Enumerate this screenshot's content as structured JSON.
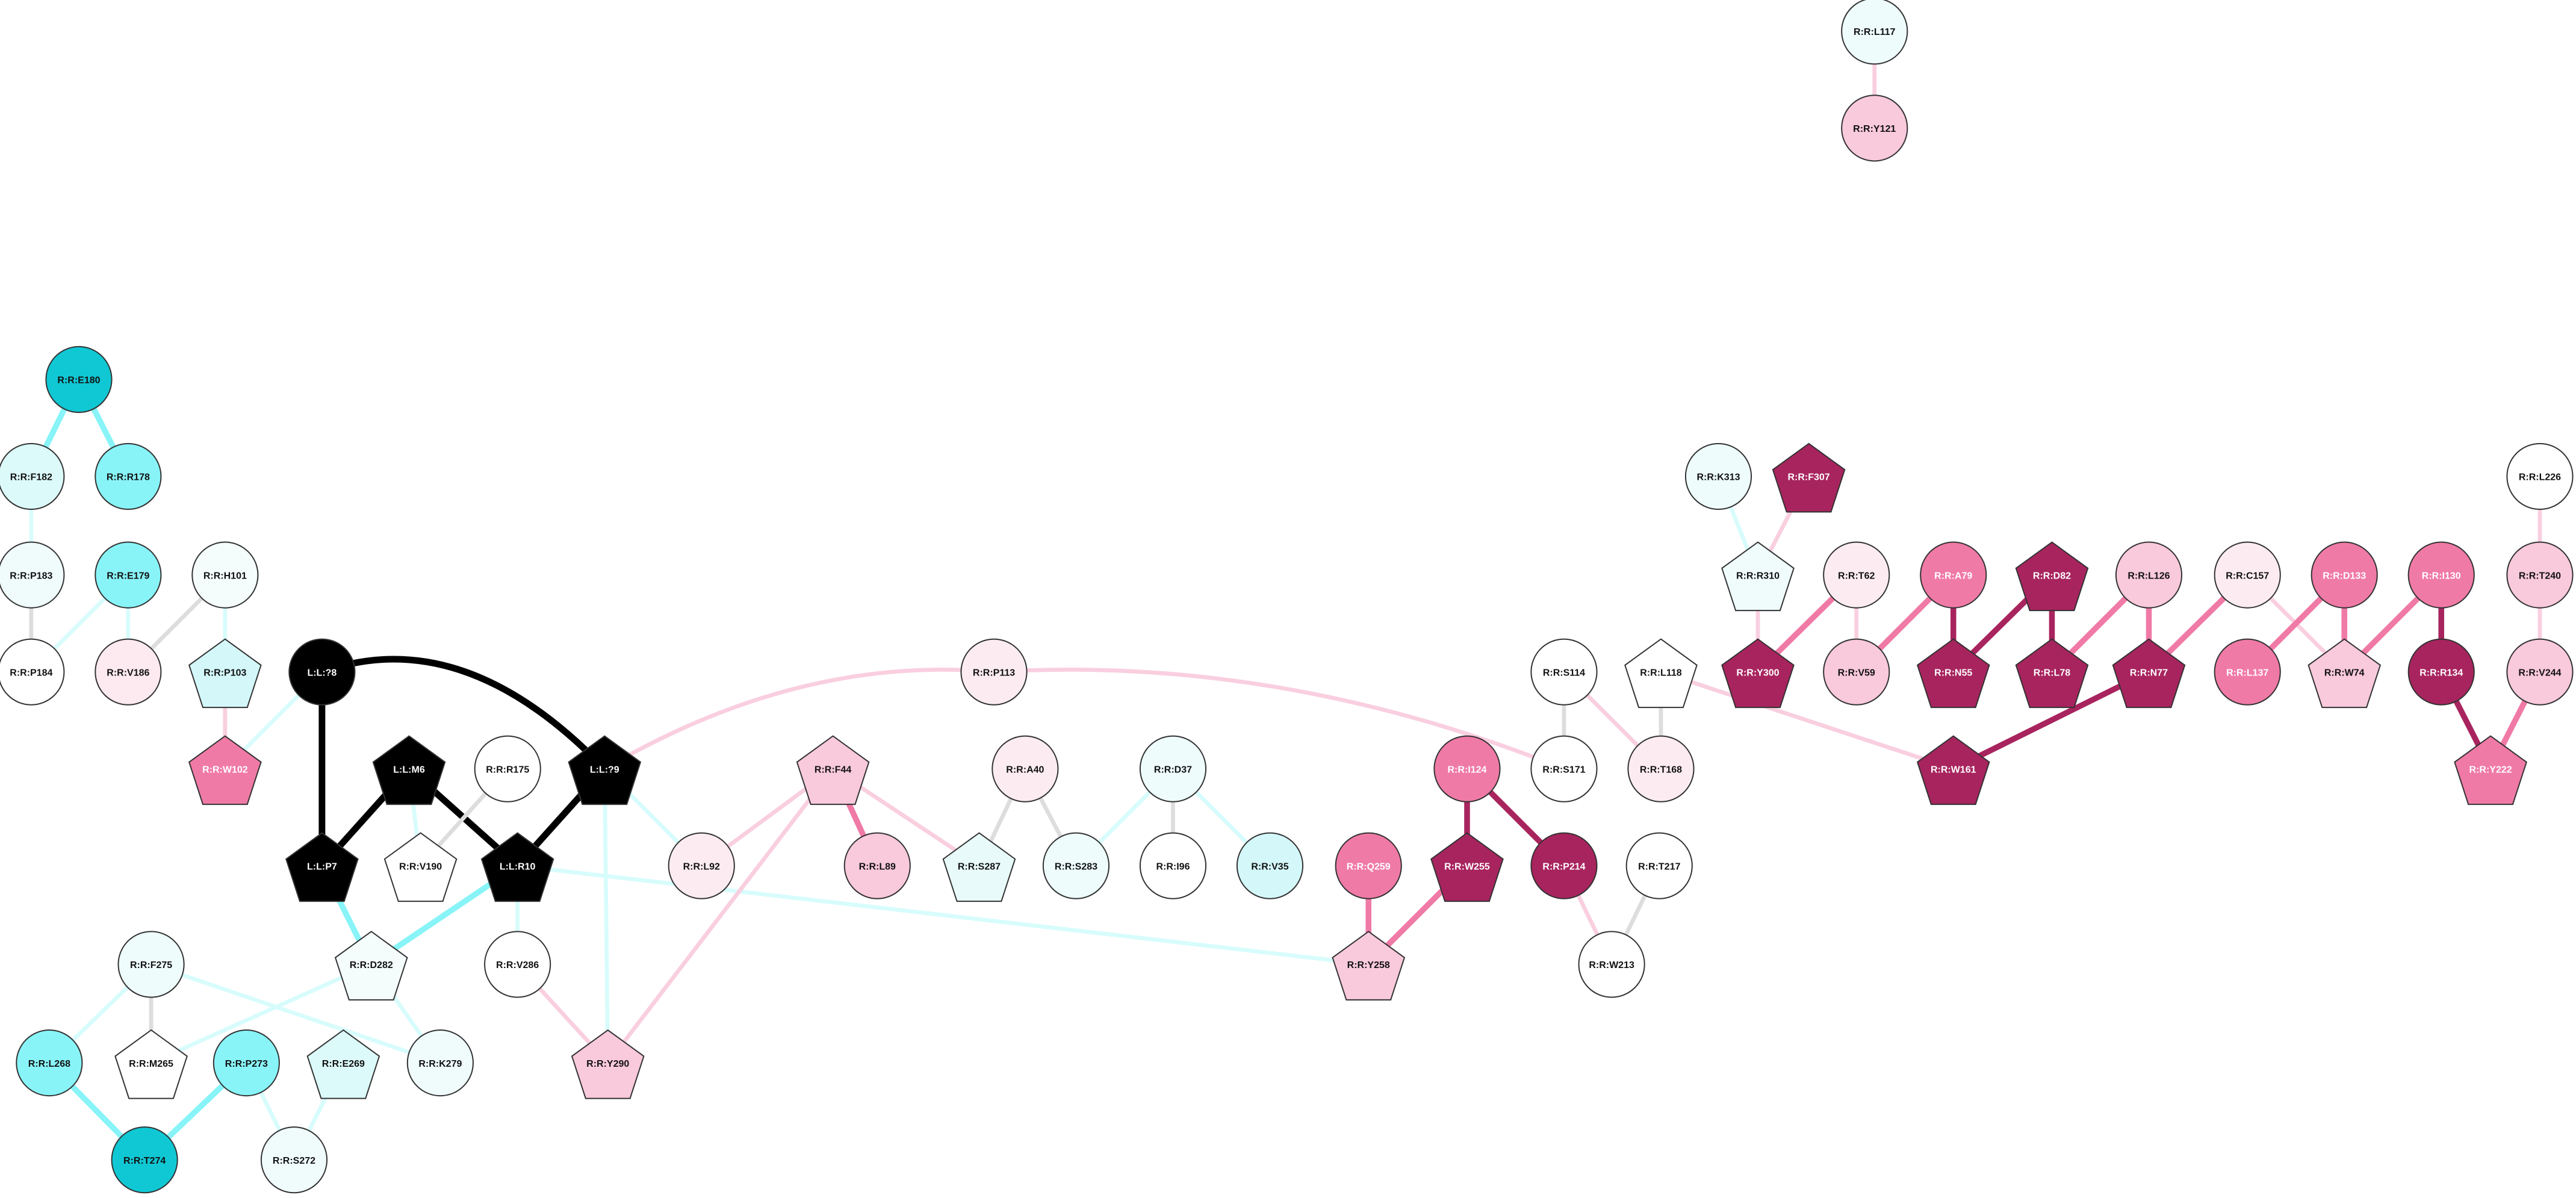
{
  "nodes": [
    {
      "label": "R:R:L117",
      "shape": "circle",
      "color": "#eefcfc"
    },
    {
      "label": "R:R:Y121",
      "shape": "circle",
      "color": "#f9c9dc"
    },
    {
      "label": "R:R:E180",
      "shape": "circle",
      "color": "#10c8d4"
    },
    {
      "label": "R:R:F182",
      "shape": "circle",
      "color": "#dcfafa"
    },
    {
      "label": "R:R:R178",
      "shape": "circle",
      "color": "#88f4f8"
    },
    {
      "label": "R:R:P183",
      "shape": "circle",
      "color": "#f0fcfc"
    },
    {
      "label": "R:R:E179",
      "shape": "circle",
      "color": "#88f4f8"
    },
    {
      "label": "R:R:H101",
      "shape": "circle",
      "color": "#f4fcfc"
    },
    {
      "label": "R:R:P184",
      "shape": "circle",
      "color": "#ffffff"
    },
    {
      "label": "R:R:V186",
      "shape": "circle",
      "color": "#fceaf0"
    },
    {
      "label": "R:R:P103",
      "shape": "pentagon",
      "color": "#d4f8fa"
    },
    {
      "label": "R:R:W102",
      "shape": "pentagon",
      "color": "#f07aa6"
    },
    {
      "label": "L:L:?8",
      "shape": "circle",
      "color": "#000000"
    },
    {
      "label": "L:L:M6",
      "shape": "pentagon",
      "color": "#000000"
    },
    {
      "label": "R:R:R175",
      "shape": "circle",
      "color": "#ffffff"
    },
    {
      "label": "L:L:?9",
      "shape": "pentagon",
      "color": "#000000"
    },
    {
      "label": "L:L:P7",
      "shape": "pentagon",
      "color": "#000000"
    },
    {
      "label": "R:R:V190",
      "shape": "pentagon",
      "color": "#ffffff"
    },
    {
      "label": "L:L:R10",
      "shape": "pentagon",
      "color": "#000000"
    },
    {
      "label": "R:R:L92",
      "shape": "circle",
      "color": "#fcecf2"
    },
    {
      "label": "R:R:F44",
      "shape": "pentagon",
      "color": "#f9c9dc"
    },
    {
      "label": "R:R:L89",
      "shape": "circle",
      "color": "#f9c9dc"
    },
    {
      "label": "R:R:P113",
      "shape": "circle",
      "color": "#fcecf2"
    },
    {
      "label": "R:R:A40",
      "shape": "circle",
      "color": "#fcecf2"
    },
    {
      "label": "R:R:S287",
      "shape": "pentagon",
      "color": "#e8fafa"
    },
    {
      "label": "R:R:S283",
      "shape": "circle",
      "color": "#eefcfc"
    },
    {
      "label": "R:R:D37",
      "shape": "circle",
      "color": "#eefcfc"
    },
    {
      "label": "R:R:I96",
      "shape": "circle",
      "color": "#ffffff"
    },
    {
      "label": "R:R:V35",
      "shape": "circle",
      "color": "#d4f8fa"
    },
    {
      "label": "R:R:D282",
      "shape": "pentagon",
      "color": "#f4fcfc"
    },
    {
      "label": "R:R:V286",
      "shape": "circle",
      "color": "#ffffff"
    },
    {
      "label": "R:R:F275",
      "shape": "circle",
      "color": "#eefcfc"
    },
    {
      "label": "R:R:L268",
      "shape": "circle",
      "color": "#88f4f8"
    },
    {
      "label": "R:R:M265",
      "shape": "pentagon",
      "color": "#ffffff"
    },
    {
      "label": "R:R:P273",
      "shape": "circle",
      "color": "#88f4f8"
    },
    {
      "label": "R:R:E269",
      "shape": "pentagon",
      "color": "#dcfafa"
    },
    {
      "label": "R:R:K279",
      "shape": "circle",
      "color": "#f0fcfc"
    },
    {
      "label": "R:R:Y290",
      "shape": "pentagon",
      "color": "#f9c9dc"
    },
    {
      "label": "R:R:T274",
      "shape": "circle",
      "color": "#10c8d4"
    },
    {
      "label": "R:R:S272",
      "shape": "circle",
      "color": "#f0fcfc"
    },
    {
      "label": "R:R:I124",
      "shape": "circle",
      "color": "#f07aa6"
    },
    {
      "label": "R:R:Q259",
      "shape": "circle",
      "color": "#f07aa6"
    },
    {
      "label": "R:R:W255",
      "shape": "pentagon",
      "color": "#a8245e"
    },
    {
      "label": "R:R:P214",
      "shape": "circle",
      "color": "#a8245e"
    },
    {
      "label": "R:R:T217",
      "shape": "circle",
      "color": "#ffffff"
    },
    {
      "label": "R:R:Y258",
      "shape": "pentagon",
      "color": "#f9c9dc"
    },
    {
      "label": "R:R:W213",
      "shape": "circle",
      "color": "#ffffff"
    },
    {
      "label": "R:R:S114",
      "shape": "circle",
      "color": "#ffffff"
    },
    {
      "label": "R:R:S171",
      "shape": "circle",
      "color": "#ffffff"
    },
    {
      "label": "R:R:L118",
      "shape": "pentagon",
      "color": "#ffffff"
    },
    {
      "label": "R:R:T168",
      "shape": "circle",
      "color": "#fcecf2"
    },
    {
      "label": "R:R:K313",
      "shape": "circle",
      "color": "#eefcfc"
    },
    {
      "label": "R:R:F307",
      "shape": "pentagon",
      "color": "#a8245e"
    },
    {
      "label": "R:R:R310",
      "shape": "pentagon",
      "color": "#f0fcfc"
    },
    {
      "label": "R:R:T62",
      "shape": "circle",
      "color": "#fcecf2"
    },
    {
      "label": "R:R:A79",
      "shape": "circle",
      "color": "#f07aa6"
    },
    {
      "label": "R:R:D82",
      "shape": "pentagon",
      "color": "#a8245e"
    },
    {
      "label": "R:R:L126",
      "shape": "circle",
      "color": "#f9c9dc"
    },
    {
      "label": "R:R:C157",
      "shape": "circle",
      "color": "#fcecf2"
    },
    {
      "label": "R:R:D133",
      "shape": "circle",
      "color": "#f07aa6"
    },
    {
      "label": "R:R:I130",
      "shape": "circle",
      "color": "#f07aa6"
    },
    {
      "label": "R:R:L226",
      "shape": "circle",
      "color": "#ffffff"
    },
    {
      "label": "R:R:T240",
      "shape": "circle",
      "color": "#f9c9dc"
    },
    {
      "label": "R:R:Y300",
      "shape": "pentagon",
      "color": "#a8245e"
    },
    {
      "label": "R:R:V59",
      "shape": "circle",
      "color": "#f9c9dc"
    },
    {
      "label": "R:R:N55",
      "shape": "pentagon",
      "color": "#a8245e"
    },
    {
      "label": "R:R:L78",
      "shape": "pentagon",
      "color": "#a8245e"
    },
    {
      "label": "R:R:N77",
      "shape": "pentagon",
      "color": "#a8245e"
    },
    {
      "label": "R:R:L137",
      "shape": "circle",
      "color": "#f07aa6"
    },
    {
      "label": "R:R:W74",
      "shape": "pentagon",
      "color": "#f9c9dc"
    },
    {
      "label": "R:R:R134",
      "shape": "circle",
      "color": "#a8245e"
    },
    {
      "label": "R:R:V244",
      "shape": "circle",
      "color": "#f9c9dc"
    },
    {
      "label": "R:R:W161",
      "shape": "pentagon",
      "color": "#a8245e"
    },
    {
      "label": "R:R:Y222",
      "shape": "pentagon",
      "color": "#f07aa6"
    }
  ]
}
